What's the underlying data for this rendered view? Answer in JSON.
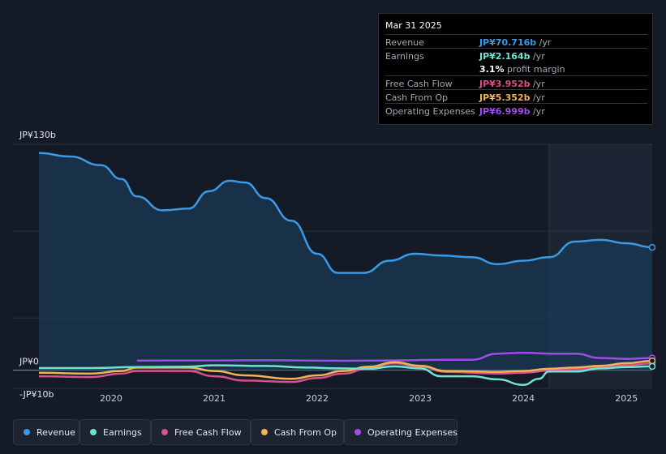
{
  "tooltip": {
    "date": "Mar 31 2025",
    "rows": [
      {
        "label": "Revenue",
        "value": "JP¥70.716b",
        "unit": "/yr",
        "color": "#3b9ae8"
      },
      {
        "label": "Earnings",
        "value": "JP¥2.164b",
        "unit": "/yr",
        "color": "#6fe3cf"
      },
      {
        "label": "",
        "value": "3.1%",
        "unit": "profit margin",
        "color": "#ffffff"
      },
      {
        "label": "Free Cash Flow",
        "value": "JP¥3.952b",
        "unit": "/yr",
        "color": "#d9508a"
      },
      {
        "label": "Cash From Op",
        "value": "JP¥5.352b",
        "unit": "/yr",
        "color": "#f0b35c"
      },
      {
        "label": "Operating Expenses",
        "value": "JP¥6.999b",
        "unit": "/yr",
        "color": "#a04ce8"
      }
    ]
  },
  "legend": [
    {
      "label": "Revenue",
      "color": "#3b9ae8"
    },
    {
      "label": "Earnings",
      "color": "#6fe3cf"
    },
    {
      "label": "Free Cash Flow",
      "color": "#d9508a"
    },
    {
      "label": "Cash From Op",
      "color": "#f0b35c"
    },
    {
      "label": "Operating Expenses",
      "color": "#a04ce8"
    }
  ],
  "chart_data": {
    "type": "line",
    "y_top_label": "JP¥130b",
    "y_zero_label": "JP¥0",
    "y_neg_label": "-JP¥10b",
    "ylim": [
      -10,
      130
    ],
    "xlim": [
      2019.3,
      2025.25
    ],
    "x_tick_labels": [
      "2020",
      "2021",
      "2022",
      "2023",
      "2024",
      "2025"
    ],
    "x_ticks": [
      2020,
      2021,
      2022,
      2023,
      2024,
      2025
    ],
    "grid": true,
    "highlight_start": 2024.25,
    "series": [
      {
        "name": "Revenue",
        "color": "#3b9ae8",
        "points": [
          [
            2019.3,
            125
          ],
          [
            2019.6,
            123
          ],
          [
            2019.9,
            118
          ],
          [
            2020.1,
            110
          ],
          [
            2020.25,
            100
          ],
          [
            2020.5,
            92
          ],
          [
            2020.75,
            93
          ],
          [
            2020.95,
            103
          ],
          [
            2021.15,
            109
          ],
          [
            2021.3,
            108
          ],
          [
            2021.5,
            99
          ],
          [
            2021.75,
            86
          ],
          [
            2022.0,
            67
          ],
          [
            2022.2,
            56
          ],
          [
            2022.45,
            56
          ],
          [
            2022.7,
            63
          ],
          [
            2022.95,
            67
          ],
          [
            2023.2,
            66
          ],
          [
            2023.5,
            65
          ],
          [
            2023.75,
            61
          ],
          [
            2024.0,
            63
          ],
          [
            2024.25,
            65
          ],
          [
            2024.5,
            74
          ],
          [
            2024.75,
            75
          ],
          [
            2025.0,
            73
          ],
          [
            2025.25,
            70.7
          ]
        ]
      },
      {
        "name": "Earnings",
        "color": "#6fe3cf",
        "points": [
          [
            2019.3,
            1.2
          ],
          [
            2019.8,
            1.2
          ],
          [
            2020.25,
            1.8
          ],
          [
            2020.75,
            2.0
          ],
          [
            2021.0,
            2.8
          ],
          [
            2021.5,
            2.4
          ],
          [
            2021.9,
            1.5
          ],
          [
            2022.2,
            1.0
          ],
          [
            2022.5,
            0.8
          ],
          [
            2022.75,
            2.2
          ],
          [
            2023.0,
            1.0
          ],
          [
            2023.2,
            -3.5
          ],
          [
            2023.5,
            -3.5
          ],
          [
            2023.75,
            -5.3
          ],
          [
            2024.0,
            -8.5
          ],
          [
            2024.15,
            -5.0
          ],
          [
            2024.25,
            -0.8
          ],
          [
            2024.5,
            -0.8
          ],
          [
            2024.75,
            1.0
          ],
          [
            2025.0,
            1.8
          ],
          [
            2025.25,
            2.164
          ]
        ]
      },
      {
        "name": "Free Cash Flow",
        "color": "#d9508a",
        "points": [
          [
            2019.3,
            -3.5
          ],
          [
            2019.8,
            -4.0
          ],
          [
            2020.1,
            -2.0
          ],
          [
            2020.25,
            -0.5
          ],
          [
            2020.75,
            -0.5
          ],
          [
            2021.0,
            -3.5
          ],
          [
            2021.3,
            -6.0
          ],
          [
            2021.75,
            -6.8
          ],
          [
            2022.0,
            -4.5
          ],
          [
            2022.25,
            -2.0
          ],
          [
            2022.5,
            1.0
          ],
          [
            2022.75,
            4.0
          ],
          [
            2023.0,
            2.0
          ],
          [
            2023.25,
            -1.0
          ],
          [
            2023.75,
            -2.0
          ],
          [
            2024.0,
            -1.5
          ],
          [
            2024.25,
            -0.2
          ],
          [
            2024.5,
            0.6
          ],
          [
            2024.75,
            1.5
          ],
          [
            2025.0,
            2.8
          ],
          [
            2025.25,
            3.952
          ]
        ]
      },
      {
        "name": "Cash From Op",
        "color": "#f0b35c",
        "points": [
          [
            2019.3,
            -1.5
          ],
          [
            2019.8,
            -2.0
          ],
          [
            2020.1,
            -0.5
          ],
          [
            2020.25,
            1.5
          ],
          [
            2020.75,
            1.5
          ],
          [
            2021.0,
            -0.5
          ],
          [
            2021.3,
            -3.0
          ],
          [
            2021.75,
            -5.0
          ],
          [
            2022.0,
            -3.0
          ],
          [
            2022.25,
            -0.5
          ],
          [
            2022.5,
            2.0
          ],
          [
            2022.75,
            4.5
          ],
          [
            2023.0,
            2.5
          ],
          [
            2023.25,
            -0.5
          ],
          [
            2023.75,
            -1.0
          ],
          [
            2024.0,
            -0.5
          ],
          [
            2024.25,
            0.8
          ],
          [
            2024.5,
            1.5
          ],
          [
            2024.75,
            2.5
          ],
          [
            2025.0,
            4.0
          ],
          [
            2025.25,
            5.352
          ]
        ]
      },
      {
        "name": "Operating Expenses",
        "color": "#a04ce8",
        "points": [
          [
            2020.25,
            5.5
          ],
          [
            2021.0,
            5.6
          ],
          [
            2021.5,
            5.7
          ],
          [
            2022.25,
            5.4
          ],
          [
            2022.75,
            5.6
          ],
          [
            2023.25,
            6.0
          ],
          [
            2023.5,
            6.0
          ],
          [
            2023.75,
            9.5
          ],
          [
            2024.0,
            10.0
          ],
          [
            2024.25,
            9.5
          ],
          [
            2024.5,
            9.5
          ],
          [
            2024.75,
            7.0
          ],
          [
            2025.0,
            6.5
          ],
          [
            2025.25,
            6.999
          ]
        ]
      }
    ]
  }
}
